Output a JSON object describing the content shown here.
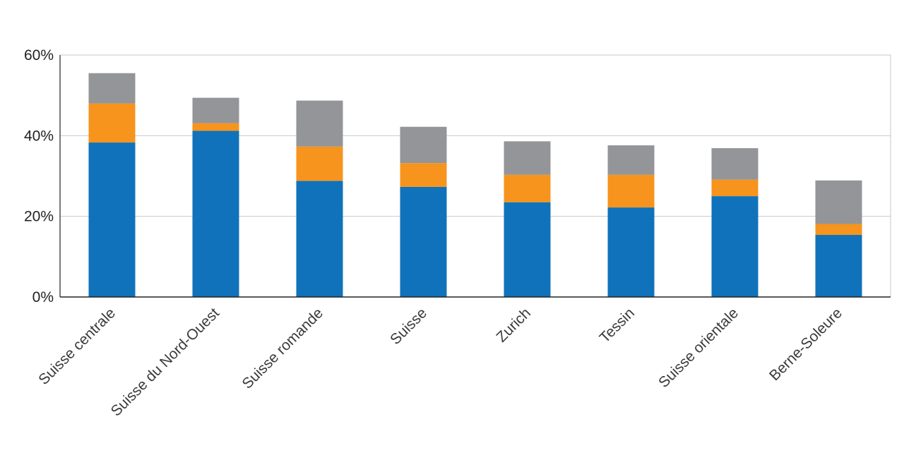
{
  "chart_data": {
    "type": "bar",
    "stacked": true,
    "categories": [
      "Suisse centrale",
      "Suisse du Nord-Ouest",
      "Suisse romande",
      "Suisse",
      "Zurich",
      "Tessin",
      "Suisse orientale",
      "Berne-Soleure"
    ],
    "series": [
      {
        "color": "#1072bb",
        "values": [
          38.3,
          41.2,
          28.8,
          27.3,
          23.5,
          22.2,
          25.0,
          15.4
        ]
      },
      {
        "color": "#f7941d",
        "values": [
          9.7,
          1.9,
          8.5,
          5.9,
          6.8,
          8.1,
          4.1,
          2.7
        ]
      },
      {
        "color": "#939598",
        "values": [
          7.5,
          6.3,
          11.4,
          9.0,
          8.3,
          7.3,
          7.8,
          10.8
        ]
      }
    ],
    "ylim": [
      0,
      60
    ],
    "yticks": [
      0,
      20,
      40,
      60
    ],
    "ytick_labels": [
      "0%",
      "20%",
      "40%",
      "60%"
    ],
    "grid": true,
    "title": "",
    "xlabel": "",
    "ylabel": ""
  }
}
